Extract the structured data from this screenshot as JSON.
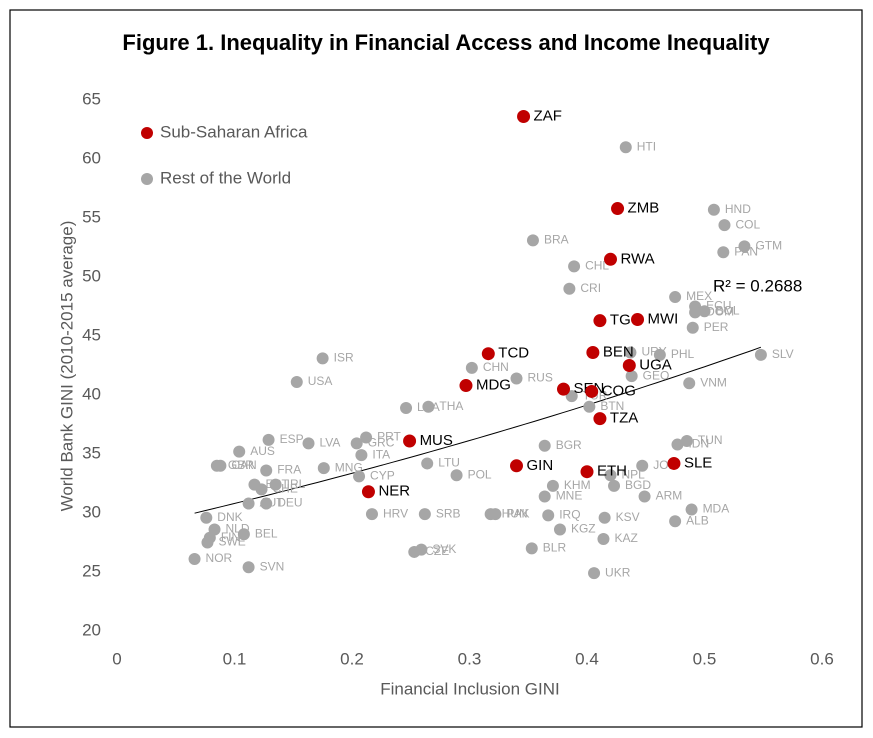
{
  "chart_data": {
    "type": "scatter",
    "title": "Figure 1. Inequality in Financial Access and Income Inequality",
    "x_label": "Financial Inclusion GINI",
    "y_label": "World Bank GINI (2010-2015 average)",
    "annotation": "R² = 0.2688",
    "xlim": [
      0,
      0.6
    ],
    "xticks": [
      0,
      0.1,
      0.2,
      0.3,
      0.4,
      0.5,
      0.6
    ],
    "ylim": [
      20,
      65
    ],
    "yticks": [
      20,
      25,
      30,
      35,
      40,
      45,
      50,
      55,
      60,
      65
    ],
    "legend": "top-left",
    "series": [
      {
        "name": "Sub-Saharan Africa",
        "color": "#c00000",
        "labels": [
          "ZAF",
          "ZMB",
          "RWA",
          "TGO",
          "MWI",
          "TCD",
          "BEN",
          "UGA",
          "MDG",
          "SEN",
          "COG",
          "TZA",
          "MUS",
          "GIN",
          "ETH",
          "SLE",
          "NER"
        ],
        "x": [
          0.346,
          0.426,
          0.42,
          0.411,
          0.443,
          0.316,
          0.405,
          0.436,
          0.297,
          0.38,
          0.404,
          0.411,
          0.249,
          0.34,
          0.4,
          0.474,
          0.214
        ],
        "values": [
          63.6,
          55.8,
          51.5,
          46.3,
          46.4,
          43.5,
          43.6,
          42.5,
          40.8,
          40.5,
          40.3,
          38.0,
          36.1,
          34.0,
          33.5,
          34.2,
          31.8
        ]
      },
      {
        "name": "Rest of the World",
        "color": "#a6a6a6",
        "labels": [
          "HTI",
          "HND",
          "COL",
          "GTM",
          "PAN",
          "BRA",
          "CHL",
          "CRI",
          "MEX",
          "ECU",
          "BOL",
          "DOM",
          "PER",
          "URY",
          "PHL",
          "GEO",
          "VNM",
          "SLV",
          "ISR",
          "USA",
          "CHN",
          "RUS",
          "TUR",
          "BTN",
          "LKA",
          "THA",
          "ESP",
          "LVA",
          "PRT",
          "GRC",
          "ITA",
          "AUS",
          "MNG",
          "BGR",
          "LTU",
          "CYP",
          "POL",
          "TUN",
          "IDN",
          "JOR",
          "NPL",
          "BGD",
          "KHM",
          "MNE",
          "ARM",
          "MDA",
          "ALB",
          "GBR",
          "CAN",
          "FRA",
          "EST",
          "CHE",
          "IRL",
          "DEU",
          "AUT",
          "HRV",
          "SRB",
          "HUN",
          "PAK",
          "IRQ",
          "KSV",
          "KGZ",
          "KAZ",
          "BLR",
          "UKR",
          "SVK",
          "CZE",
          "DNK",
          "NLD",
          "BEL",
          "FIN",
          "SWE",
          "NOR",
          "SVN"
        ],
        "x": [
          0.433,
          0.508,
          0.517,
          0.534,
          0.516,
          0.354,
          0.389,
          0.385,
          0.475,
          0.492,
          0.5,
          0.492,
          0.49,
          0.437,
          0.462,
          0.438,
          0.487,
          0.548,
          0.175,
          0.153,
          0.302,
          0.34,
          0.387,
          0.402,
          0.246,
          0.265,
          0.129,
          0.163,
          0.212,
          0.204,
          0.208,
          0.104,
          0.176,
          0.364,
          0.264,
          0.206,
          0.289,
          0.485,
          0.477,
          0.447,
          0.42,
          0.423,
          0.371,
          0.364,
          0.449,
          0.489,
          0.475,
          0.085,
          0.088,
          0.127,
          0.117,
          0.123,
          0.135,
          0.127,
          0.112,
          0.217,
          0.262,
          0.318,
          0.322,
          0.367,
          0.415,
          0.377,
          0.414,
          0.353,
          0.406,
          0.259,
          0.253,
          0.076,
          0.083,
          0.108,
          0.079,
          0.077,
          0.066,
          0.112
        ],
        "values": [
          61.0,
          55.7,
          54.4,
          52.6,
          52.1,
          53.1,
          50.9,
          49.0,
          48.3,
          47.5,
          47.1,
          47.0,
          45.7,
          43.6,
          43.4,
          41.6,
          41.0,
          43.4,
          43.1,
          41.1,
          42.3,
          41.4,
          39.9,
          39.0,
          38.9,
          39.0,
          36.2,
          35.9,
          36.4,
          35.9,
          34.9,
          35.2,
          33.8,
          35.7,
          34.2,
          33.1,
          33.2,
          36.1,
          35.8,
          34.0,
          33.2,
          32.3,
          32.3,
          31.4,
          31.4,
          30.3,
          29.3,
          34.0,
          34.0,
          33.6,
          32.4,
          32.0,
          32.4,
          30.8,
          30.8,
          29.9,
          29.9,
          29.9,
          29.9,
          29.8,
          29.6,
          28.6,
          27.8,
          27.0,
          24.9,
          26.9,
          26.7,
          29.6,
          28.6,
          28.2,
          27.9,
          27.5,
          26.1,
          25.4
        ]
      }
    ]
  }
}
